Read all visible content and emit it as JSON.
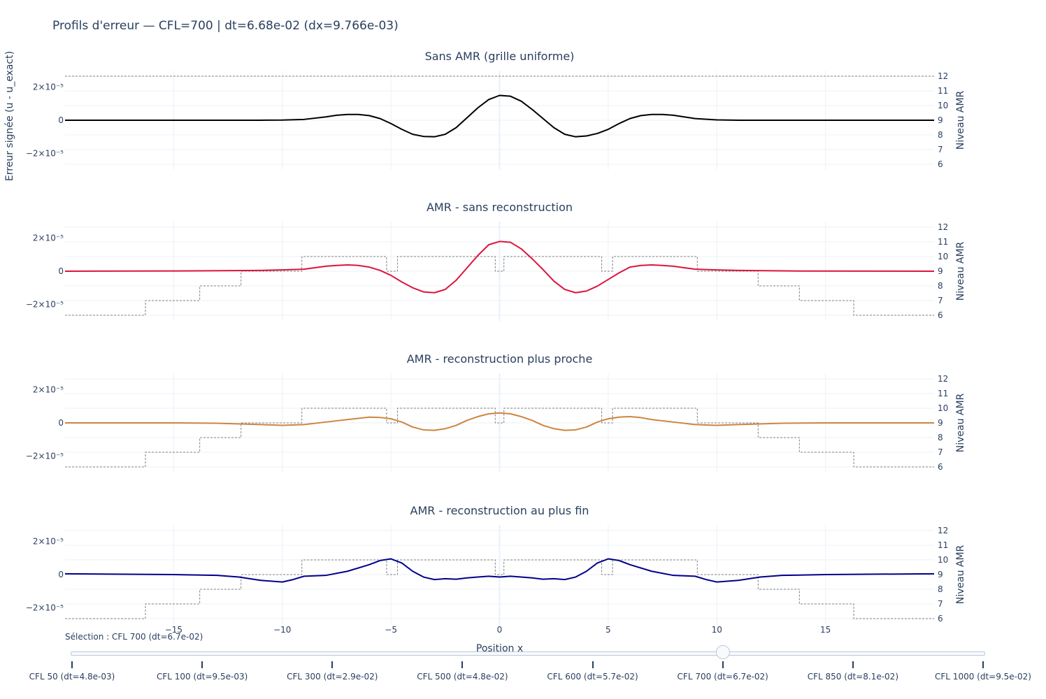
{
  "title": "Profils d'erreur — CFL=700 | dt=6.68e-02 (dx=9.766e-03)",
  "colors": {
    "sans_amr": "#000000",
    "sans_reconstruction": "#dc143c",
    "plus_proche": "#cd853f",
    "plus_fin": "#00008b",
    "level_line": "#808080",
    "grid": "#ebf0f8"
  },
  "chart_data": {
    "type": "line",
    "ylabel_left": "Erreur signée (u - u_exact)",
    "ylabel_right": "Niveau AMR",
    "xlabel": "Position x",
    "x_ticks": [
      -15,
      -10,
      -5,
      0,
      5,
      10,
      15
    ],
    "x_tick_labels": [
      "−15",
      "−10",
      "−5",
      "0",
      "5",
      "10",
      "15"
    ],
    "xlim": [
      -20,
      20
    ],
    "y_ticks": [
      2e-05,
      0,
      -2e-05
    ],
    "y_tick_labels": [
      "2×10⁻⁵",
      "0",
      "−2×10⁻⁵"
    ],
    "ylim": [
      -3e-05,
      3e-05
    ],
    "level_ticks": [
      12,
      11,
      10,
      9,
      8,
      7,
      6
    ],
    "level_range": [
      6,
      12
    ],
    "panels": [
      {
        "title": "Sans AMR (grille uniforme)",
        "series": {
          "x": [
            -20,
            -14,
            -11,
            -10,
            -9,
            -8,
            -7.5,
            -7,
            -6.5,
            -6,
            -5.5,
            -5,
            -4.5,
            -4,
            -3.5,
            -3,
            -2.5,
            -2,
            -1.5,
            -1,
            -0.5,
            0,
            0.5,
            1,
            1.5,
            2,
            2.5,
            3,
            3.5,
            4,
            4.5,
            5,
            5.5,
            6,
            6.5,
            7,
            7.5,
            8,
            9,
            10,
            11,
            14,
            20
          ],
          "y": [
            0,
            0,
            0,
            1e-07,
            5e-07,
            2e-06,
            3e-06,
            3.5e-06,
            3.5e-06,
            2.8e-06,
            1e-06,
            -2e-06,
            -5.5e-06,
            -8.5e-06,
            -9.8e-06,
            -1e-05,
            -8.5e-06,
            -4.5e-06,
            1.5e-06,
            7.5e-06,
            1.25e-05,
            1.5e-05,
            1.45e-05,
            1.15e-05,
            6.5e-06,
            1e-06,
            -4.5e-06,
            -8.5e-06,
            -1e-05,
            -9.5e-06,
            -8e-06,
            -5.5e-06,
            -2e-06,
            1e-06,
            2.8e-06,
            3.5e-06,
            3.5e-06,
            3e-06,
            1e-06,
            2e-07,
            0,
            0,
            0
          ]
        },
        "levels": [
          [
            -20,
            12
          ],
          [
            20,
            12
          ]
        ]
      },
      {
        "title": "AMR - sans reconstruction",
        "series": {
          "x": [
            -20,
            -14,
            -11,
            -10,
            -9,
            -8,
            -7.5,
            -7,
            -6.5,
            -6,
            -5.5,
            -5,
            -4.5,
            -4,
            -3.5,
            -3,
            -2.5,
            -2,
            -1.5,
            -1,
            -0.5,
            0,
            0.5,
            1,
            1.5,
            2,
            2.5,
            3,
            3.5,
            4,
            4.5,
            5,
            5.5,
            6,
            6.5,
            7,
            7.5,
            8,
            9,
            10,
            11,
            14,
            20
          ],
          "y": [
            0,
            2e-07,
            5e-07,
            8e-07,
            1.2e-06,
            3e-06,
            3.5e-06,
            3.8e-06,
            3.5e-06,
            2.5e-06,
            5e-07,
            -2.5e-06,
            -6.5e-06,
            -1e-05,
            -1.25e-05,
            -1.3e-05,
            -1.1e-05,
            -5.5e-06,
            2e-06,
            9.5e-06,
            1.6e-05,
            1.8e-05,
            1.75e-05,
            1.35e-05,
            7.5e-06,
            1e-06,
            -6e-06,
            -1.1e-05,
            -1.3e-05,
            -1.2e-05,
            -9e-06,
            -5e-06,
            -1e-06,
            2.5e-06,
            3.5e-06,
            3.8e-06,
            3.5e-06,
            3e-06,
            1.2e-06,
            8e-07,
            5e-07,
            1e-07,
            0
          ]
        },
        "levels": [
          [
            -20,
            6
          ],
          [
            -16.3,
            6
          ],
          [
            -16.3,
            7
          ],
          [
            -13.8,
            7
          ],
          [
            -13.8,
            8
          ],
          [
            -11.9,
            8
          ],
          [
            -11.9,
            9
          ],
          [
            -9.1,
            9
          ],
          [
            -9.1,
            10
          ],
          [
            -5.2,
            10
          ],
          [
            -5.2,
            9
          ],
          [
            -4.7,
            9
          ],
          [
            -4.7,
            10
          ],
          [
            -0.2,
            10
          ],
          [
            -0.2,
            9
          ],
          [
            0.2,
            9
          ],
          [
            0.2,
            10
          ],
          [
            4.7,
            10
          ],
          [
            4.7,
            9
          ],
          [
            5.2,
            9
          ],
          [
            5.2,
            10
          ],
          [
            9.1,
            10
          ],
          [
            9.1,
            9
          ],
          [
            11.9,
            9
          ],
          [
            11.9,
            8
          ],
          [
            13.8,
            8
          ],
          [
            13.8,
            7
          ],
          [
            16.3,
            7
          ],
          [
            16.3,
            6
          ],
          [
            20,
            6
          ]
        ]
      },
      {
        "title": "AMR - reconstruction plus proche",
        "series": {
          "x": [
            -20,
            -15,
            -13,
            -11,
            -10,
            -9,
            -8,
            -7,
            -6,
            -5.5,
            -5,
            -4.5,
            -4,
            -3.5,
            -3,
            -2.5,
            -2,
            -1.5,
            -1,
            -0.5,
            0,
            0.5,
            1,
            1.5,
            2,
            2.5,
            3,
            3.5,
            4,
            4.5,
            5,
            5.5,
            6,
            6.5,
            7,
            8,
            9,
            10,
            11,
            13,
            15,
            20
          ],
          "y": [
            0,
            0,
            -2e-07,
            -1e-06,
            -1.5e-06,
            -1e-06,
            5e-07,
            2e-06,
            3.5e-06,
            3.3e-06,
            2.5e-06,
            5e-07,
            -2.5e-06,
            -4.2e-06,
            -4.5e-06,
            -3.5e-06,
            -1.5e-06,
            1.5e-06,
            3.8e-06,
            5.5e-06,
            6e-06,
            5.5e-06,
            3.8e-06,
            1.5e-06,
            -1.5e-06,
            -3.5e-06,
            -4.5e-06,
            -4.2e-06,
            -2.5e-06,
            5e-07,
            2.5e-06,
            3.5e-06,
            3.8e-06,
            3.2e-06,
            2e-06,
            5e-07,
            -1e-06,
            -1.5e-06,
            -1e-06,
            -2e-07,
            0,
            0
          ]
        },
        "levels": [
          [
            -20,
            6
          ],
          [
            -16.3,
            6
          ],
          [
            -16.3,
            7
          ],
          [
            -13.8,
            7
          ],
          [
            -13.8,
            8
          ],
          [
            -11.9,
            8
          ],
          [
            -11.9,
            9
          ],
          [
            -9.1,
            9
          ],
          [
            -9.1,
            10
          ],
          [
            -5.2,
            10
          ],
          [
            -5.2,
            9
          ],
          [
            -4.7,
            9
          ],
          [
            -4.7,
            10
          ],
          [
            -0.2,
            10
          ],
          [
            -0.2,
            9
          ],
          [
            0.2,
            9
          ],
          [
            0.2,
            10
          ],
          [
            4.7,
            10
          ],
          [
            4.7,
            9
          ],
          [
            5.2,
            9
          ],
          [
            5.2,
            10
          ],
          [
            9.1,
            10
          ],
          [
            9.1,
            9
          ],
          [
            11.9,
            9
          ],
          [
            11.9,
            8
          ],
          [
            13.8,
            8
          ],
          [
            13.8,
            7
          ],
          [
            16.3,
            7
          ],
          [
            16.3,
            6
          ],
          [
            20,
            6
          ]
        ]
      },
      {
        "title": "AMR - reconstruction au plus fin",
        "series": {
          "x": [
            -20,
            -15,
            -13,
            -12,
            -11,
            -10,
            -9.5,
            -9,
            -8,
            -7,
            -6,
            -5.5,
            -5,
            -4.5,
            -4,
            -3.5,
            -3,
            -2.5,
            -2,
            -1.5,
            -1,
            -0.5,
            0,
            0.5,
            1,
            1.5,
            2,
            2.5,
            3,
            3.5,
            4,
            4.5,
            5,
            5.5,
            6,
            7,
            8,
            9,
            9.5,
            10,
            11,
            12,
            13,
            15,
            20
          ],
          "y": [
            5e-07,
            0,
            -5e-07,
            -1.5e-06,
            -3.5e-06,
            -4.5e-06,
            -3e-06,
            -1e-06,
            -5e-07,
            2e-06,
            6e-06,
            8.5e-06,
            9.5e-06,
            7e-06,
            2e-06,
            -1.5e-06,
            -3e-06,
            -2.5e-06,
            -2.8e-06,
            -2e-06,
            -1.5e-06,
            -1e-06,
            -1.5e-06,
            -1e-06,
            -1.5e-06,
            -2e-06,
            -2.8e-06,
            -2.5e-06,
            -3e-06,
            -1.5e-06,
            2e-06,
            7e-06,
            9.5e-06,
            8.5e-06,
            6e-06,
            2e-06,
            -5e-07,
            -1e-06,
            -3e-06,
            -4.5e-06,
            -3.5e-06,
            -1.5e-06,
            -5e-07,
            0,
            5e-07
          ]
        },
        "levels": [
          [
            -20,
            6
          ],
          [
            -16.3,
            6
          ],
          [
            -16.3,
            7
          ],
          [
            -13.8,
            7
          ],
          [
            -13.8,
            8
          ],
          [
            -11.9,
            8
          ],
          [
            -11.9,
            9
          ],
          [
            -9.1,
            9
          ],
          [
            -9.1,
            10
          ],
          [
            -5.2,
            10
          ],
          [
            -5.2,
            9
          ],
          [
            -4.7,
            9
          ],
          [
            -4.7,
            10
          ],
          [
            -0.2,
            10
          ],
          [
            -0.2,
            9
          ],
          [
            0.2,
            9
          ],
          [
            0.2,
            10
          ],
          [
            4.7,
            10
          ],
          [
            4.7,
            9
          ],
          [
            5.2,
            9
          ],
          [
            5.2,
            10
          ],
          [
            9.1,
            10
          ],
          [
            9.1,
            9
          ],
          [
            11.9,
            9
          ],
          [
            11.9,
            8
          ],
          [
            13.8,
            8
          ],
          [
            13.8,
            7
          ],
          [
            16.3,
            7
          ],
          [
            16.3,
            6
          ],
          [
            20,
            6
          ]
        ]
      }
    ]
  },
  "slider": {
    "current_label": "Sélection : CFL 700 (dt=6.7e-02)",
    "active_index": 5,
    "steps": [
      "CFL 50 (dt=4.8e-03)",
      "CFL 100 (dt=9.5e-03)",
      "CFL 300 (dt=2.9e-02)",
      "CFL 500 (dt=4.8e-02)",
      "CFL 600 (dt=5.7e-02)",
      "CFL 700 (dt=6.7e-02)",
      "CFL 850 (dt=8.1e-02)",
      "CFL 1000 (dt=9.5e-02)"
    ]
  }
}
